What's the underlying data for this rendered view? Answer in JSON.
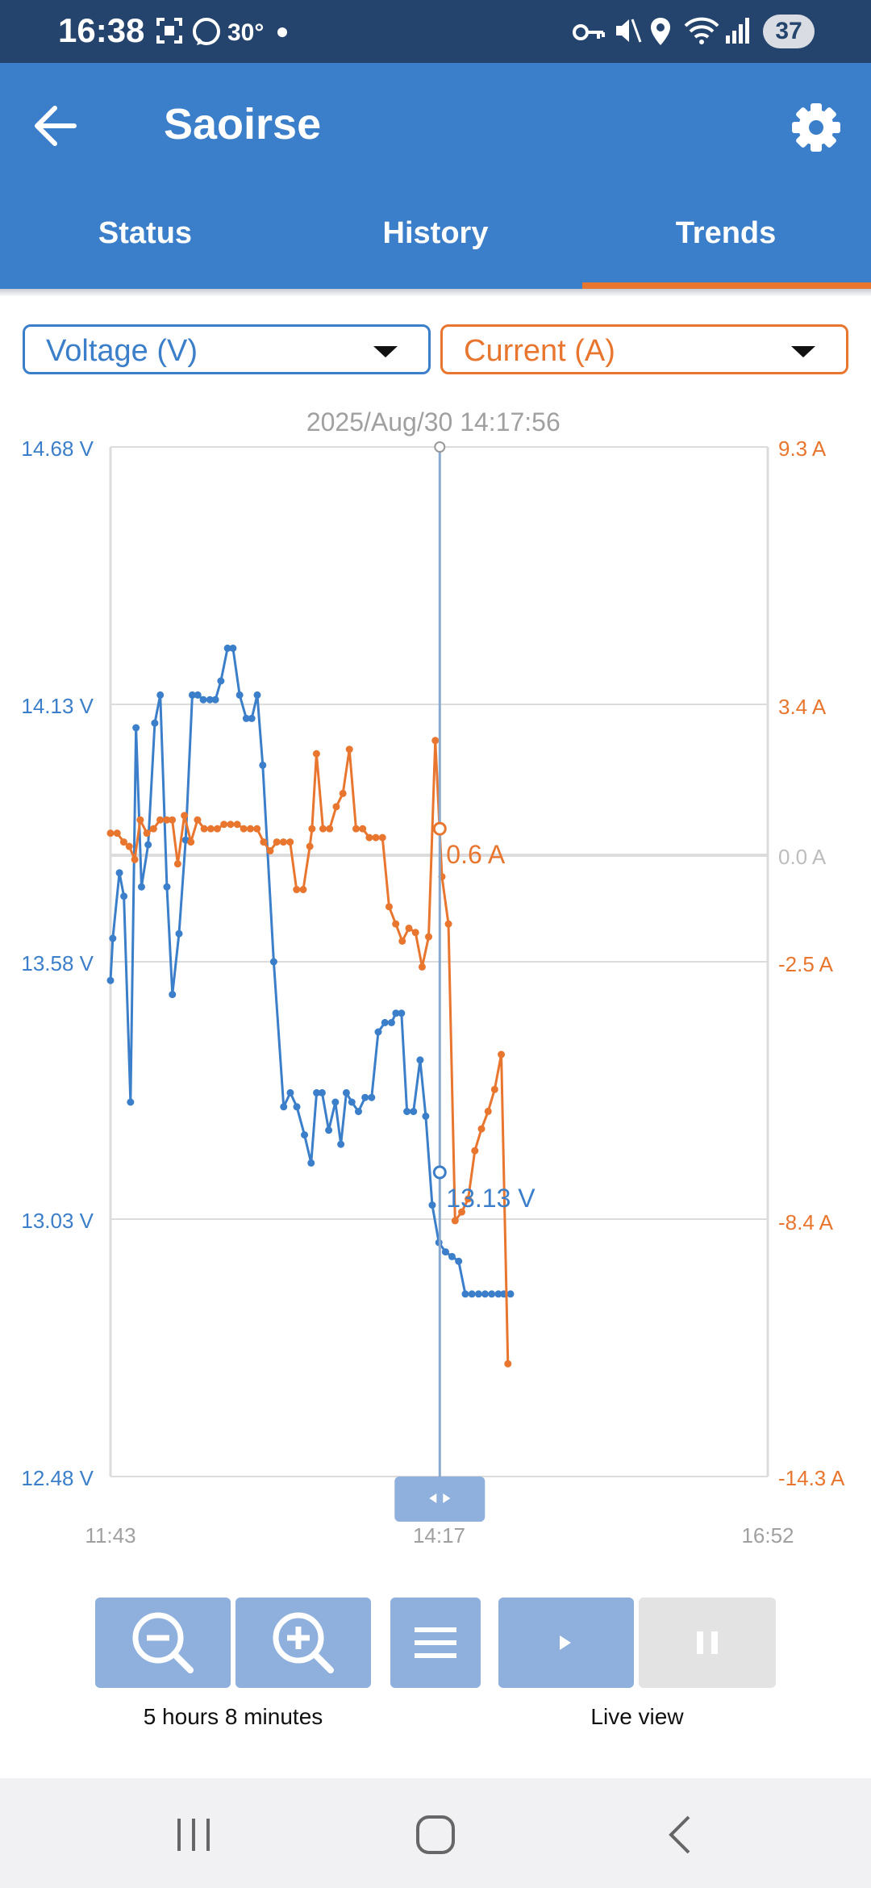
{
  "status_bar": {
    "time": "16:38",
    "temperature": "30°",
    "battery": "37"
  },
  "app_bar": {
    "title": "Saoirse"
  },
  "tabs": [
    {
      "label": "Status",
      "selected": false
    },
    {
      "label": "History",
      "selected": false
    },
    {
      "label": "Trends",
      "selected": true
    }
  ],
  "selectors": {
    "left": "Voltage (V)",
    "right": "Current (A)"
  },
  "colors": {
    "voltage": "#3b7ec9",
    "current": "#e8762f",
    "app_bar": "#3b7ec9",
    "status_bar": "#25446d",
    "accent": "#e8762f"
  },
  "chart_data": {
    "type": "line",
    "cursor_timestamp": "2025/Aug/30 14:17:56",
    "cursor_time_hours": 14.297,
    "cursor_readouts": {
      "voltage": "13.13 V",
      "current": "0.6 A"
    },
    "x_ticks": [
      "11:43",
      "14:17",
      "16:52"
    ],
    "x_range_hours": [
      11.717,
      16.867
    ],
    "y_left": {
      "label": "Voltage (V)",
      "ticks": [
        "14.68 V",
        "14.13 V",
        "13.58 V",
        "13.03 V",
        "12.48 V"
      ],
      "range": [
        12.48,
        14.68
      ]
    },
    "y_right": {
      "label": "Current (A)",
      "ticks": [
        "9.3 A",
        "3.4 A",
        "0.0 A",
        "-2.5 A",
        "-8.4 A",
        "-14.3 A"
      ],
      "tick_values": [
        9.3,
        3.4,
        0.0,
        -2.5,
        -8.4,
        -14.3
      ]
    },
    "series": [
      {
        "name": "Voltage (V)",
        "axis": "left",
        "color": "#3b7ec9",
        "points": [
          [
            11.717,
            13.54
          ],
          [
            11.735,
            13.63
          ],
          [
            11.787,
            13.77
          ],
          [
            11.822,
            13.72
          ],
          [
            11.874,
            13.28
          ],
          [
            11.917,
            14.08
          ],
          [
            11.96,
            13.74
          ],
          [
            12.012,
            13.83
          ],
          [
            12.064,
            14.09
          ],
          [
            12.107,
            14.15
          ],
          [
            12.159,
            13.74
          ],
          [
            12.202,
            13.51
          ],
          [
            12.254,
            13.64
          ],
          [
            12.306,
            13.84
          ],
          [
            12.358,
            14.15
          ],
          [
            12.401,
            14.15
          ],
          [
            12.444,
            14.14
          ],
          [
            12.496,
            14.14
          ],
          [
            12.539,
            14.14
          ],
          [
            12.582,
            14.18
          ],
          [
            12.634,
            14.25
          ],
          [
            12.677,
            14.25
          ],
          [
            12.729,
            14.15
          ],
          [
            12.781,
            14.1
          ],
          [
            12.824,
            14.1
          ],
          [
            12.867,
            14.15
          ],
          [
            12.91,
            14.0
          ],
          [
            12.996,
            13.58
          ],
          [
            13.074,
            13.27
          ],
          [
            13.126,
            13.3
          ],
          [
            13.177,
            13.27
          ],
          [
            13.237,
            13.21
          ],
          [
            13.289,
            13.15
          ],
          [
            13.332,
            13.3
          ],
          [
            13.375,
            13.3
          ],
          [
            13.427,
            13.22
          ],
          [
            13.479,
            13.28
          ],
          [
            13.522,
            13.19
          ],
          [
            13.565,
            13.3
          ],
          [
            13.608,
            13.28
          ],
          [
            13.66,
            13.26
          ],
          [
            13.712,
            13.29
          ],
          [
            13.763,
            13.29
          ],
          [
            13.815,
            13.43
          ],
          [
            13.867,
            13.45
          ],
          [
            13.919,
            13.45
          ],
          [
            13.953,
            13.47
          ],
          [
            13.997,
            13.47
          ],
          [
            14.04,
            13.26
          ],
          [
            14.091,
            13.26
          ],
          [
            14.143,
            13.37
          ],
          [
            14.187,
            13.25
          ],
          [
            14.238,
            13.06
          ],
          [
            14.29,
            12.98
          ],
          [
            14.342,
            12.96
          ],
          [
            14.393,
            12.95
          ],
          [
            14.445,
            12.94
          ],
          [
            14.497,
            12.87
          ],
          [
            14.549,
            12.87
          ],
          [
            14.601,
            12.87
          ],
          [
            14.652,
            12.87
          ],
          [
            14.704,
            12.87
          ],
          [
            14.756,
            12.87
          ],
          [
            14.799,
            12.87
          ],
          [
            14.851,
            12.87
          ]
        ]
      },
      {
        "name": "Current (A)",
        "axis": "right",
        "color": "#e8762f",
        "points": [
          [
            11.717,
            0.5
          ],
          [
            11.769,
            0.5
          ],
          [
            11.821,
            0.3
          ],
          [
            11.864,
            0.2
          ],
          [
            11.907,
            -0.1
          ],
          [
            11.95,
            0.8
          ],
          [
            12.002,
            0.5
          ],
          [
            12.054,
            0.6
          ],
          [
            12.106,
            0.8
          ],
          [
            12.158,
            0.8
          ],
          [
            12.201,
            0.8
          ],
          [
            12.244,
            -0.2
          ],
          [
            12.296,
            0.9
          ],
          [
            12.347,
            0.3
          ],
          [
            12.399,
            0.8
          ],
          [
            12.451,
            0.6
          ],
          [
            12.503,
            0.6
          ],
          [
            12.554,
            0.6
          ],
          [
            12.606,
            0.7
          ],
          [
            12.658,
            0.7
          ],
          [
            12.71,
            0.7
          ],
          [
            12.761,
            0.6
          ],
          [
            12.813,
            0.6
          ],
          [
            12.865,
            0.6
          ],
          [
            12.917,
            0.3
          ],
          [
            12.968,
            0.1
          ],
          [
            13.02,
            0.3
          ],
          [
            13.072,
            0.3
          ],
          [
            13.124,
            0.3
          ],
          [
            13.175,
            -0.8
          ],
          [
            13.227,
            -0.8
          ],
          [
            13.279,
            0.2
          ],
          [
            13.296,
            0.6
          ],
          [
            13.331,
            2.3
          ],
          [
            13.382,
            0.6
          ],
          [
            13.434,
            0.6
          ],
          [
            13.486,
            1.1
          ],
          [
            13.538,
            1.4
          ],
          [
            13.589,
            2.4
          ],
          [
            13.641,
            0.6
          ],
          [
            13.693,
            0.6
          ],
          [
            13.745,
            0.4
          ],
          [
            13.796,
            0.4
          ],
          [
            13.848,
            0.4
          ],
          [
            13.9,
            -1.2
          ],
          [
            13.952,
            -1.6
          ],
          [
            14.003,
            -2.0
          ],
          [
            14.055,
            -1.7
          ],
          [
            14.107,
            -1.8
          ],
          [
            14.159,
            -2.6
          ],
          [
            14.21,
            -1.9
          ],
          [
            14.262,
            2.6
          ],
          [
            14.314,
            -0.5
          ],
          [
            14.365,
            -1.6
          ],
          [
            14.417,
            -8.4
          ],
          [
            14.469,
            -8.2
          ],
          [
            14.52,
            -7.9
          ],
          [
            14.572,
            -6.8
          ],
          [
            14.624,
            -6.3
          ],
          [
            14.676,
            -5.9
          ],
          [
            14.727,
            -5.4
          ],
          [
            14.779,
            -4.6
          ],
          [
            14.831,
            -11.7
          ]
        ]
      }
    ],
    "zoom_window": "5 hours 8 minutes",
    "live_view": {
      "label": "Live view",
      "paused": false
    }
  },
  "controls": {
    "zoom_caption": "5 hours 8 minutes",
    "live_caption": "Live view"
  }
}
